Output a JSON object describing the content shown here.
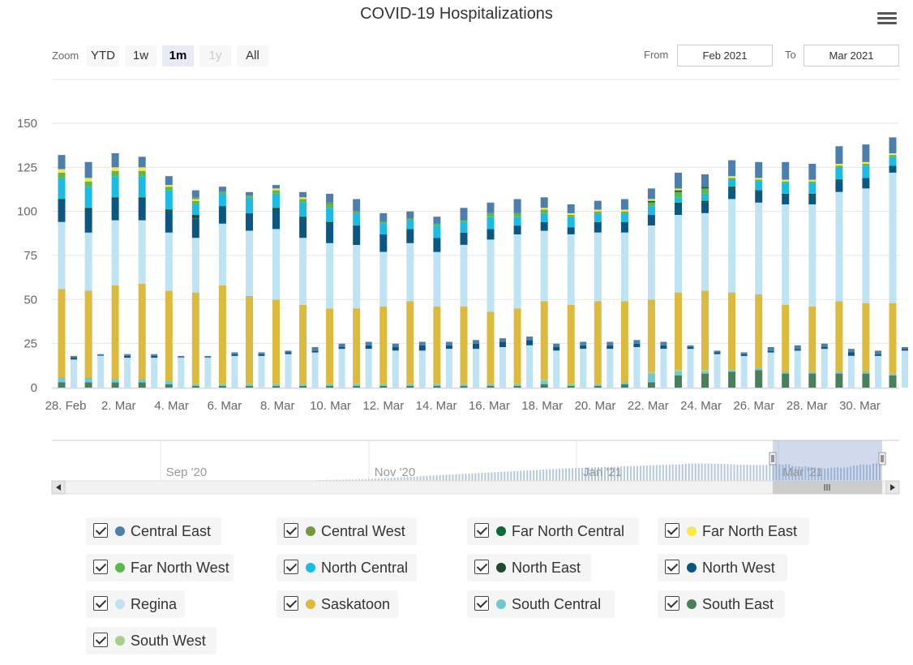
{
  "title": "COVID-19 Hospitalizations",
  "toolbar": {
    "zoom_label": "Zoom",
    "buttons": [
      "YTD",
      "1w",
      "1m",
      "1y",
      "All"
    ],
    "active": "1m",
    "disabled": "1y",
    "from_label": "From",
    "from_value": "Feb 2021",
    "to_label": "To",
    "to_value": "Mar 2021"
  },
  "colors": {
    "Central East": "#4c7fad",
    "Central West": "#739a40",
    "Far North Central": "#0a6a36",
    "Far North East": "#f7e84a",
    "Far North West": "#5ab84c",
    "North Central": "#1cbbe6",
    "North East": "#1f4a30",
    "North West": "#0c5782",
    "Regina": "#bee3f2",
    "Saskatoon": "#dbba3d",
    "South Central": "#6fcad0",
    "South East": "#4a7f5c",
    "South West": "#a4d08c"
  },
  "chart_data": {
    "type": "bar",
    "stacked": true,
    "title": "COVID-19 Hospitalizations",
    "ylim": [
      0,
      150
    ],
    "yticks": [
      0,
      25,
      50,
      75,
      100,
      125,
      150
    ],
    "x_tick_labels": [
      "28. Feb",
      "2. Mar",
      "4. Mar",
      "6. Mar",
      "8. Mar",
      "10. Mar",
      "12. Mar",
      "14. Mar",
      "16. Mar",
      "18. Mar",
      "20. Mar",
      "22. Mar",
      "24. Mar",
      "26. Mar",
      "28. Mar",
      "30. Mar"
    ],
    "categories": [
      "28 Feb",
      "1 Mar",
      "2 Mar",
      "3 Mar",
      "4 Mar",
      "5 Mar",
      "6 Mar",
      "7 Mar",
      "8 Mar",
      "9 Mar",
      "10 Mar",
      "11 Mar",
      "12 Mar",
      "13 Mar",
      "14 Mar",
      "15 Mar",
      "16 Mar",
      "17 Mar",
      "18 Mar",
      "19 Mar",
      "20 Mar",
      "21 Mar",
      "22 Mar",
      "23 Mar",
      "24 Mar",
      "25 Mar",
      "26 Mar",
      "27 Mar",
      "28 Mar",
      "29 Mar",
      "30 Mar",
      "31 Mar"
    ],
    "series": [
      {
        "name": "South East",
        "values": [
          3,
          3,
          3,
          3,
          2,
          1,
          1,
          1,
          1,
          1,
          1,
          1,
          1,
          1,
          1,
          1,
          1,
          1,
          2,
          1,
          1,
          2,
          3,
          7,
          8,
          9,
          10,
          8,
          8,
          8,
          8,
          7
        ]
      },
      {
        "name": "South Central",
        "values": [
          3,
          3,
          2,
          2,
          2,
          1,
          1,
          1,
          1,
          1,
          1,
          1,
          1,
          1,
          1,
          1,
          1,
          1,
          2,
          1,
          1,
          1,
          5,
          2,
          1,
          1,
          1,
          1,
          1,
          1,
          1,
          1
        ]
      },
      {
        "name": "South West",
        "values": [
          0,
          0,
          0,
          0,
          0,
          0,
          0,
          0,
          0,
          0,
          0,
          0,
          0,
          0,
          0,
          0,
          0,
          0,
          1,
          0,
          0,
          0,
          1,
          1,
          1,
          0,
          0,
          0,
          0,
          0,
          0,
          0
        ]
      },
      {
        "name": "Saskatoon",
        "values": [
          50,
          49,
          53,
          54,
          51,
          52,
          56,
          50,
          48,
          45,
          43,
          43,
          44,
          47,
          44,
          44,
          41,
          43,
          44,
          45,
          47,
          46,
          41,
          44,
          45,
          44,
          42,
          38,
          37,
          40,
          39,
          40
        ]
      },
      {
        "name": "Regina",
        "values": [
          38,
          33,
          37,
          36,
          33,
          31,
          35,
          37,
          40,
          38,
          37,
          36,
          31,
          33,
          31,
          35,
          41,
          42,
          40,
          40,
          39,
          39,
          42,
          44,
          44,
          53,
          52,
          57,
          58,
          62,
          65,
          74
        ]
      },
      {
        "name": "North West",
        "values": [
          12,
          13,
          12,
          12,
          12,
          11,
          10,
          10,
          11,
          11,
          11,
          11,
          10,
          8,
          8,
          7,
          6,
          5,
          5,
          4,
          6,
          6,
          6,
          6,
          6,
          6,
          6,
          5,
          5,
          6,
          6,
          4
        ]
      },
      {
        "name": "North East",
        "values": [
          1,
          1,
          1,
          1,
          1,
          2,
          0,
          0,
          1,
          1,
          1,
          0,
          0,
          0,
          0,
          0,
          0,
          0,
          0,
          0,
          0,
          0,
          0,
          1,
          1,
          1,
          1,
          1,
          1,
          1,
          0,
          0
        ]
      },
      {
        "name": "North Central",
        "values": [
          12,
          12,
          12,
          12,
          11,
          6,
          7,
          9,
          8,
          8,
          8,
          7,
          6,
          5,
          7,
          6,
          7,
          5,
          5,
          6,
          5,
          5,
          5,
          3,
          4,
          4,
          5,
          6,
          6,
          7,
          7,
          5
        ]
      },
      {
        "name": "Far North West",
        "values": [
          3,
          3,
          3,
          3,
          2,
          2,
          1,
          1,
          2,
          2,
          2,
          1,
          1,
          1,
          1,
          1,
          2,
          2,
          2,
          1,
          1,
          1,
          2,
          3,
          3,
          1,
          1,
          1,
          1,
          1,
          1,
          1
        ]
      },
      {
        "name": "Far North Central",
        "values": [
          0,
          0,
          0,
          0,
          0,
          0,
          0,
          0,
          0,
          0,
          0,
          0,
          0,
          0,
          0,
          0,
          0,
          0,
          0,
          0,
          0,
          0,
          1,
          1,
          1,
          0,
          0,
          0,
          0,
          0,
          0,
          0
        ]
      },
      {
        "name": "Far North East",
        "values": [
          2,
          2,
          2,
          2,
          1,
          1,
          0,
          0,
          1,
          1,
          0,
          0,
          0,
          0,
          0,
          0,
          0,
          0,
          1,
          1,
          1,
          1,
          1,
          1,
          0,
          1,
          1,
          1,
          1,
          1,
          1,
          1
        ]
      },
      {
        "name": "Central West",
        "values": [
          0,
          0,
          0,
          0,
          0,
          1,
          0,
          0,
          0,
          0,
          1,
          0,
          0,
          0,
          0,
          0,
          0,
          0,
          0,
          0,
          0,
          0,
          0,
          0,
          0,
          0,
          0,
          0,
          0,
          0,
          0,
          0
        ]
      },
      {
        "name": "Central East",
        "values": [
          8,
          9,
          8,
          6,
          5,
          4,
          3,
          2,
          2,
          3,
          5,
          7,
          5,
          4,
          4,
          7,
          6,
          8,
          6,
          5,
          5,
          6,
          6,
          9,
          7,
          9,
          9,
          10,
          9,
          10,
          10,
          9
        ]
      }
    ],
    "secondary_bars": [
      {
        "name": "South East",
        "values": [
          0,
          0,
          0,
          0,
          0,
          0,
          0,
          0,
          0,
          0,
          0,
          0,
          0,
          0,
          0,
          0,
          0,
          0,
          0,
          0,
          0,
          0,
          0,
          0,
          0,
          0,
          0,
          0,
          0,
          0,
          0,
          0
        ]
      },
      {
        "name": "South Central",
        "values": [
          0,
          0,
          0,
          0,
          0,
          0,
          0,
          0,
          0,
          0,
          0,
          0,
          0,
          0,
          0,
          0,
          0,
          0,
          0,
          0,
          0,
          0,
          0,
          0,
          0,
          0,
          0,
          0,
          0,
          0,
          0,
          0
        ]
      },
      {
        "name": "Regina",
        "values": [
          16,
          18,
          17,
          17,
          17,
          17,
          18,
          18,
          19,
          20,
          22,
          22,
          21,
          21,
          22,
          22,
          23,
          24,
          21,
          22,
          22,
          23,
          22,
          22,
          19,
          18,
          20,
          21,
          22,
          18,
          18,
          21
        ]
      },
      {
        "name": "North West",
        "values": [
          1,
          0,
          1,
          1,
          0,
          0,
          1,
          1,
          1,
          1,
          1,
          2,
          2,
          3,
          2,
          3,
          3,
          3,
          2,
          2,
          2,
          2,
          2,
          1,
          1,
          1,
          1,
          1,
          1,
          2,
          1,
          1
        ]
      },
      {
        "name": "Central East",
        "values": [
          1,
          1,
          1,
          1,
          1,
          1,
          1,
          1,
          1,
          2,
          2,
          2,
          2,
          2,
          2,
          2,
          2,
          2,
          2,
          2,
          2,
          2,
          2,
          1,
          1,
          1,
          2,
          2,
          2,
          2,
          2,
          1
        ]
      }
    ],
    "navigator": {
      "labels": [
        "Sep '20",
        "Nov '20",
        "Jan '21",
        "Mar '21"
      ]
    }
  },
  "legend": [
    {
      "name": "Central East"
    },
    {
      "name": "Central West"
    },
    {
      "name": "Far North Central"
    },
    {
      "name": "Far North East"
    },
    {
      "name": "Far North West"
    },
    {
      "name": "North Central"
    },
    {
      "name": "North East"
    },
    {
      "name": "North West"
    },
    {
      "name": "Regina"
    },
    {
      "name": "Saskatoon"
    },
    {
      "name": "South Central"
    },
    {
      "name": "South East"
    },
    {
      "name": "South West"
    }
  ]
}
